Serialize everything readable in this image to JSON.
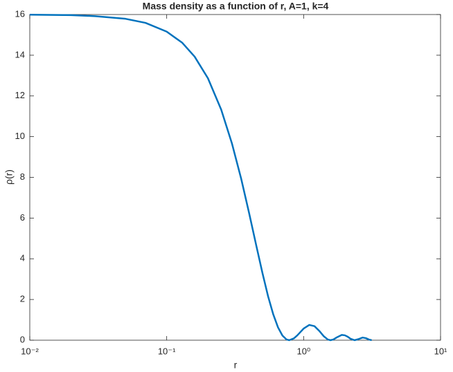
{
  "chart_data": {
    "type": "line",
    "title": "Mass density as a function of r, A=1, k=4",
    "xlabel": "r",
    "ylabel": "ρ(r)",
    "xscale": "log",
    "color": "#0072bd",
    "x": [
      0.01,
      0.02,
      0.03,
      0.05,
      0.07,
      0.1,
      0.13,
      0.16,
      0.2,
      0.25,
      0.3,
      0.35,
      0.4,
      0.45,
      0.5,
      0.55,
      0.6,
      0.65,
      0.7,
      0.75,
      0.785,
      0.85,
      0.9,
      1.0,
      1.1,
      1.2,
      1.3,
      1.4,
      1.5,
      1.571,
      1.65,
      1.75,
      1.9,
      2.0,
      2.1,
      2.2,
      2.356,
      2.5,
      2.7,
      2.85,
      3.0,
      3.1416
    ],
    "series": [
      {
        "name": "ρ(r)",
        "color": "#0072bd",
        "values": [
          15.99,
          15.97,
          15.92,
          15.79,
          15.59,
          15.16,
          14.61,
          13.93,
          12.87,
          11.33,
          9.65,
          7.93,
          6.24,
          4.68,
          3.31,
          2.16,
          1.27,
          0.63,
          0.23,
          0.035,
          0,
          0.09,
          0.24,
          0.57,
          0.75,
          0.69,
          0.46,
          0.2,
          0.035,
          0,
          0.036,
          0.14,
          0.26,
          0.24,
          0.17,
          0.07,
          0,
          0.047,
          0.13,
          0.1,
          0.032,
          0
        ]
      }
    ],
    "xlim": [
      0.01,
      10
    ],
    "xticks": [
      {
        "value": 0.01,
        "label": "10⁻²"
      },
      {
        "value": 0.1,
        "label": "10⁻¹"
      },
      {
        "value": 1,
        "label": "10⁰"
      },
      {
        "value": 10,
        "label": "10¹"
      }
    ],
    "ylim": [
      0,
      16
    ],
    "yticks": [
      0,
      2,
      4,
      6,
      8,
      10,
      12,
      14,
      16
    ],
    "grid": false
  }
}
